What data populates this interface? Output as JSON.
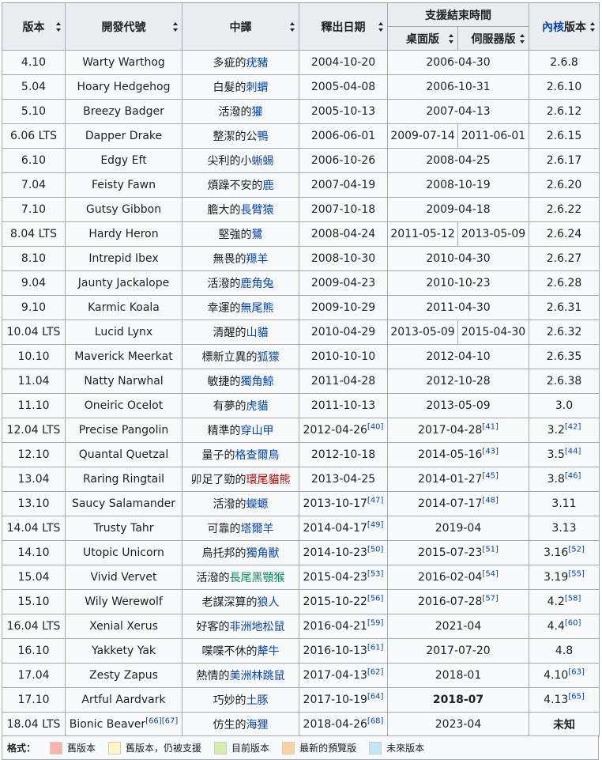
{
  "header": {
    "version": "版本",
    "codename": "開發代號",
    "translation": "中譯",
    "release_date": "釋出日期",
    "support_end": "支援結束時間",
    "desktop": "桌面版",
    "server": "伺服器版",
    "kernel_link": "內核",
    "kernel_suffix": "版本"
  },
  "colors": {
    "old": "#fdb3ab",
    "old_supported": "#fef8c6",
    "current": "#d1f0b0",
    "preview": "#fed1a0",
    "future": "#c1e6f5"
  },
  "rows": [
    {
      "ver": "4.10",
      "code": "Warty Warthog",
      "code_ref": "",
      "tr_pre": "多疵的",
      "tr_link": "疣豬",
      "date": "2004-10-20",
      "date_ref": "",
      "end": "2006-04-30",
      "end_ref": "",
      "status": "old",
      "kernel": "2.6.8",
      "kernel_ref": ""
    },
    {
      "ver": "5.04",
      "code": "Hoary Hedgehog",
      "code_ref": "",
      "tr_pre": "白髮的",
      "tr_link": "刺蝟",
      "date": "2005-04-08",
      "date_ref": "",
      "end": "2006-10-31",
      "end_ref": "",
      "status": "old",
      "kernel": "2.6.10",
      "kernel_ref": ""
    },
    {
      "ver": "5.10",
      "code": "Breezy Badger",
      "code_ref": "",
      "tr_pre": "活潑的",
      "tr_link": "獾",
      "date": "2005-10-13",
      "date_ref": "",
      "end": "2007-04-13",
      "end_ref": "",
      "status": "old",
      "kernel": "2.6.12",
      "kernel_ref": ""
    },
    {
      "ver": "6.06 LTS",
      "code": "Dapper Drake",
      "code_ref": "",
      "tr_pre": "整潔的公",
      "tr_link": "鴨",
      "date": "2006-06-01",
      "date_ref": "",
      "desktop": "2009-07-14",
      "server": "2011-06-01",
      "status": "old",
      "kernel": "2.6.15",
      "kernel_ref": ""
    },
    {
      "ver": "6.10",
      "code": "Edgy Eft",
      "code_ref": "",
      "tr_pre": "尖利的小",
      "tr_link": "蜥蜴",
      "date": "2006-10-26",
      "date_ref": "",
      "end": "2008-04-25",
      "end_ref": "",
      "status": "old",
      "kernel": "2.6.17",
      "kernel_ref": ""
    },
    {
      "ver": "7.04",
      "code": "Feisty Fawn",
      "code_ref": "",
      "tr_pre": "煩躁不安的",
      "tr_link": "鹿",
      "date": "2007-04-19",
      "date_ref": "",
      "end": "2008-10-19",
      "end_ref": "",
      "status": "old",
      "kernel": "2.6.20",
      "kernel_ref": ""
    },
    {
      "ver": "7.10",
      "code": "Gutsy Gibbon",
      "code_ref": "",
      "tr_pre": "膽大的",
      "tr_link": "長臂猿",
      "date": "2007-10-18",
      "date_ref": "",
      "end": "2009-04-18",
      "end_ref": "",
      "status": "old",
      "kernel": "2.6.22",
      "kernel_ref": ""
    },
    {
      "ver": "8.04 LTS",
      "code": "Hardy Heron",
      "code_ref": "",
      "tr_pre": "堅強的",
      "tr_link": "鷺",
      "date": "2008-04-24",
      "date_ref": "",
      "desktop": "2011-05-12",
      "server": "2013-05-09",
      "status": "old",
      "kernel": "2.6.24",
      "kernel_ref": ""
    },
    {
      "ver": "8.10",
      "code": "Intrepid Ibex",
      "code_ref": "",
      "tr_pre": "無畏的",
      "tr_link": "羱羊",
      "date": "2008-10-30",
      "date_ref": "",
      "end": "2010-04-30",
      "end_ref": "",
      "status": "old",
      "kernel": "2.6.27",
      "kernel_ref": ""
    },
    {
      "ver": "9.04",
      "code": "Jaunty Jackalope",
      "code_ref": "",
      "tr_pre": "活潑的",
      "tr_link": "鹿角兔",
      "date": "2009-04-23",
      "date_ref": "",
      "end": "2010-10-23",
      "end_ref": "",
      "status": "old",
      "kernel": "2.6.28",
      "kernel_ref": ""
    },
    {
      "ver": "9.10",
      "code": "Karmic Koala",
      "code_ref": "",
      "tr_pre": "幸運的",
      "tr_link": "無尾熊",
      "date": "2009-10-29",
      "date_ref": "",
      "end": "2011-04-30",
      "end_ref": "",
      "status": "old",
      "kernel": "2.6.31",
      "kernel_ref": ""
    },
    {
      "ver": "10.04 LTS",
      "code": "Lucid Lynx",
      "code_ref": "",
      "tr_pre": "清醒的",
      "tr_link": "山貓",
      "date": "2010-04-29",
      "date_ref": "",
      "desktop": "2013-05-09",
      "server": "2015-04-30",
      "status": "old",
      "kernel": "2.6.32",
      "kernel_ref": ""
    },
    {
      "ver": "10.10",
      "code": "Maverick Meerkat",
      "code_ref": "",
      "tr_pre": "標新立異的",
      "tr_link": "狐獴",
      "date": "2010-10-10",
      "date_ref": "",
      "end": "2012-04-10",
      "end_ref": "",
      "status": "old",
      "kernel": "2.6.35",
      "kernel_ref": ""
    },
    {
      "ver": "11.04",
      "code": "Natty Narwhal",
      "code_ref": "",
      "tr_pre": "敏捷的",
      "tr_link": "獨角鯨",
      "date": "2011-04-28",
      "date_ref": "",
      "end": "2012-10-28",
      "end_ref": "",
      "status": "old",
      "kernel": "2.6.38",
      "kernel_ref": ""
    },
    {
      "ver": "11.10",
      "code": "Oneiric Ocelot",
      "code_ref": "",
      "tr_pre": "有夢的",
      "tr_link": "虎貓",
      "date": "2011-10-13",
      "date_ref": "",
      "end": "2013-05-09",
      "end_ref": "",
      "status": "old",
      "kernel": "3.0",
      "kernel_ref": ""
    },
    {
      "ver": "12.04 LTS",
      "code": "Precise Pangolin",
      "code_ref": "",
      "tr_pre": "精準的",
      "tr_link": "穿山甲",
      "date": "2012-04-26",
      "date_ref": "[40]",
      "end": "2017-04-28",
      "end_ref": "[41]",
      "status": "old",
      "kernel": "3.2",
      "kernel_ref": "[42]"
    },
    {
      "ver": "12.10",
      "code": "Quantal Quetzal",
      "code_ref": "",
      "tr_pre": "量子的",
      "tr_link": "格查爾鳥",
      "date": "2012-10-18",
      "date_ref": "",
      "end": "2014-05-16",
      "end_ref": "[43]",
      "status": "old",
      "kernel": "3.5",
      "kernel_ref": "[44]"
    },
    {
      "ver": "13.04",
      "code": "Raring Ringtail",
      "code_ref": "",
      "tr_pre": "卯足了勁的",
      "tr_link": "環尾貓熊",
      "tr_link_class": "link-red",
      "date": "2013-04-25",
      "date_ref": "",
      "end": "2014-01-27",
      "end_ref": "[45]",
      "status": "old",
      "kernel": "3.8",
      "kernel_ref": "[46]"
    },
    {
      "ver": "13.10",
      "code": "Saucy Salamander",
      "code_ref": "",
      "tr_pre": "活潑的",
      "tr_link": "蠑螈",
      "date": "2013-10-17",
      "date_ref": "[47]",
      "end": "2014-07-17",
      "end_ref": "[48]",
      "status": "old",
      "kernel": "3.11",
      "kernel_ref": ""
    },
    {
      "ver": "14.04 LTS",
      "code": "Trusty Tahr",
      "code_ref": "",
      "tr_pre": "可靠的",
      "tr_link": "塔爾羊",
      "date": "2014-04-17",
      "date_ref": "[49]",
      "end": "2019-04",
      "end_ref": "",
      "status": "supported",
      "kernel": "3.13",
      "kernel_ref": ""
    },
    {
      "ver": "14.10",
      "code": "Utopic Unicorn",
      "code_ref": "",
      "tr_pre": "烏托邦的",
      "tr_link": "獨角獸",
      "date": "2014-10-23",
      "date_ref": "[50]",
      "end": "2015-07-23",
      "end_ref": "[51]",
      "status": "old",
      "kernel": "3.16",
      "kernel_ref": "[52]"
    },
    {
      "ver": "15.04",
      "code": "Vivid Vervet",
      "code_ref": "",
      "tr_pre": "活潑的",
      "tr_link": "長尾黑顎猴",
      "tr_link_class": "link-green",
      "date": "2015-04-23",
      "date_ref": "[53]",
      "end": "2016-02-04",
      "end_ref": "[54]",
      "status": "old",
      "kernel": "3.19",
      "kernel_ref": "[55]"
    },
    {
      "ver": "15.10",
      "code": "Wily Werewolf",
      "code_ref": "",
      "tr_pre": "老謀深算的",
      "tr_link": "狼人",
      "date": "2015-10-22",
      "date_ref": "[56]",
      "end": "2016-07-28",
      "end_ref": "[57]",
      "status": "old",
      "kernel": "4.2",
      "kernel_ref": "[58]"
    },
    {
      "ver": "16.04 LTS",
      "code": "Xenial Xerus",
      "code_ref": "",
      "tr_pre": "好客的",
      "tr_link": "非洲地松鼠",
      "date": "2016-04-21",
      "date_ref": "[59]",
      "end": "2021-04",
      "end_ref": "",
      "status": "supported",
      "kernel": "4.4",
      "kernel_ref": "[60]"
    },
    {
      "ver": "16.10",
      "code": "Yakkety Yak",
      "code_ref": "",
      "tr_pre": "喋喋不休的",
      "tr_link": "犛牛",
      "date": "2016-10-13",
      "date_ref": "[61]",
      "end": "2017-07-20",
      "end_ref": "",
      "status": "old",
      "kernel": "4.8",
      "kernel_ref": ""
    },
    {
      "ver": "17.04",
      "code": "Zesty Zapus",
      "code_ref": "",
      "tr_pre": "熱情的",
      "tr_link": "美洲林跳鼠",
      "date": "2017-04-13",
      "date_ref": "[62]",
      "end": "2018-01",
      "end_ref": "",
      "status": "supported",
      "kernel": "4.10",
      "kernel_ref": "[63]"
    },
    {
      "ver": "17.10",
      "code": "Artful Aardvark",
      "code_ref": "",
      "tr_pre": "巧妙的",
      "tr_link": "土豚",
      "date": "2017-10-19",
      "date_ref": "[64]",
      "end": "2018-07",
      "end_ref": "",
      "status": "current",
      "kernel": "4.13",
      "kernel_ref": "[65]"
    },
    {
      "ver": "18.04 LTS",
      "code": "Bionic Beaver",
      "code_ref": "[66][67]",
      "tr_pre": "仿生的",
      "tr_link": "海狸",
      "date": "2018-04-26",
      "date_ref": "[68]",
      "end": "2023-04",
      "end_ref": "",
      "status": "future",
      "kernel": "未知",
      "kernel_ref": "",
      "kernel_unknown": true
    }
  ],
  "legend": {
    "title": "格式：",
    "items": [
      {
        "swatch": "old",
        "label": "舊版本"
      },
      {
        "swatch": "supported",
        "label": "舊版本，仍被支援"
      },
      {
        "swatch": "current",
        "label": "目前版本"
      },
      {
        "swatch": "preview",
        "label": "最新的預覽版"
      },
      {
        "swatch": "future",
        "label": "未來版本"
      }
    ]
  }
}
